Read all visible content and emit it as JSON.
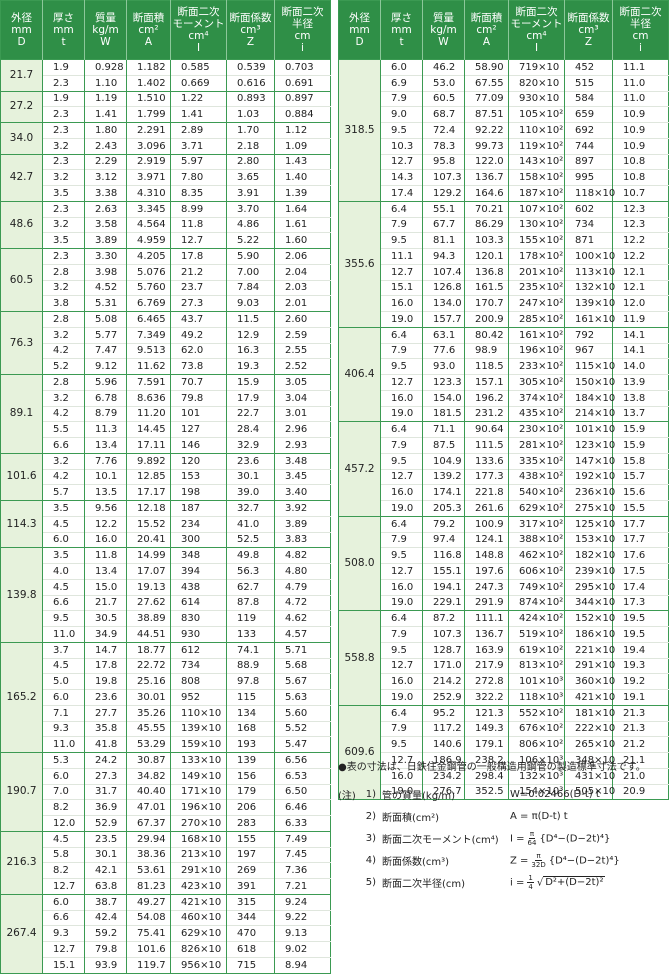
{
  "header": [
    [
      "外径",
      "mm",
      "D"
    ],
    [
      "厚さ",
      "mm",
      "t"
    ],
    [
      "質量",
      "kg/m",
      "W"
    ],
    [
      "断面積",
      "cm²",
      "A"
    ],
    [
      "断面二次",
      "モーメント",
      "cm⁴",
      "I"
    ],
    [
      "断面係数",
      "cm³",
      "Z"
    ],
    [
      "断面二次",
      "半径",
      "cm",
      "i"
    ]
  ],
  "left": {
    "groups": [
      {
        "D": "21.7",
        "rows": [
          [
            "1.9",
            "0.928",
            "1.182",
            "0.585",
            "0.539",
            "0.703"
          ],
          [
            "2.3",
            "1.10",
            "1.402",
            "0.669",
            "0.616",
            "0.691"
          ]
        ]
      },
      {
        "D": "27.2",
        "rows": [
          [
            "1.9",
            "1.19",
            "1.510",
            "1.22",
            "0.893",
            "0.897"
          ],
          [
            "2.3",
            "1.41",
            "1.799",
            "1.41",
            "1.03",
            "0.884"
          ]
        ]
      },
      {
        "D": "34.0",
        "rows": [
          [
            "2.3",
            "1.80",
            "2.291",
            "2.89",
            "1.70",
            "1.12"
          ],
          [
            "3.2",
            "2.43",
            "3.096",
            "3.71",
            "2.18",
            "1.09"
          ]
        ]
      },
      {
        "D": "42.7",
        "rows": [
          [
            "2.3",
            "2.29",
            "2.919",
            "5.97",
            "2.80",
            "1.43"
          ],
          [
            "3.2",
            "3.12",
            "3.971",
            "7.80",
            "3.65",
            "1.40"
          ],
          [
            "3.5",
            "3.38",
            "4.310",
            "8.35",
            "3.91",
            "1.39"
          ]
        ]
      },
      {
        "D": "48.6",
        "rows": [
          [
            "2.3",
            "2.63",
            "3.345",
            "8.99",
            "3.70",
            "1.64"
          ],
          [
            "3.2",
            "3.58",
            "4.564",
            "11.8",
            "4.86",
            "1.61"
          ],
          [
            "3.5",
            "3.89",
            "4.959",
            "12.7",
            "5.22",
            "1.60"
          ]
        ]
      },
      {
        "D": "60.5",
        "rows": [
          [
            "2.3",
            "3.30",
            "4.205",
            "17.8",
            "5.90",
            "2.06"
          ],
          [
            "2.8",
            "3.98",
            "5.076",
            "21.2",
            "7.00",
            "2.04"
          ],
          [
            "3.2",
            "4.52",
            "5.760",
            "23.7",
            "7.84",
            "2.03"
          ],
          [
            "3.8",
            "5.31",
            "6.769",
            "27.3",
            "9.03",
            "2.01"
          ]
        ]
      },
      {
        "D": "76.3",
        "rows": [
          [
            "2.8",
            "5.08",
            "6.465",
            "43.7",
            "11.5",
            "2.60"
          ],
          [
            "3.2",
            "5.77",
            "7.349",
            "49.2",
            "12.9",
            "2.59"
          ],
          [
            "4.2",
            "7.47",
            "9.513",
            "62.0",
            "16.3",
            "2.55"
          ],
          [
            "5.2",
            "9.12",
            "11.62",
            "73.8",
            "19.3",
            "2.52"
          ]
        ]
      },
      {
        "D": "89.1",
        "rows": [
          [
            "2.8",
            "5.96",
            "7.591",
            "70.7",
            "15.9",
            "3.05"
          ],
          [
            "3.2",
            "6.78",
            "8.636",
            "79.8",
            "17.9",
            "3.04"
          ],
          [
            "4.2",
            "8.79",
            "11.20",
            "101",
            "22.7",
            "3.01"
          ],
          [
            "5.5",
            "11.3",
            "14.45",
            "127",
            "28.4",
            "2.96"
          ],
          [
            "6.6",
            "13.4",
            "17.11",
            "146",
            "32.9",
            "2.93"
          ]
        ]
      },
      {
        "D": "101.6",
        "rows": [
          [
            "3.2",
            "7.76",
            "9.892",
            "120",
            "23.6",
            "3.48"
          ],
          [
            "4.2",
            "10.1",
            "12.85",
            "153",
            "30.1",
            "3.45"
          ],
          [
            "5.7",
            "13.5",
            "17.17",
            "198",
            "39.0",
            "3.40"
          ]
        ]
      },
      {
        "D": "114.3",
        "rows": [
          [
            "3.5",
            "9.56",
            "12.18",
            "187",
            "32.7",
            "3.92"
          ],
          [
            "4.5",
            "12.2",
            "15.52",
            "234",
            "41.0",
            "3.89"
          ],
          [
            "6.0",
            "16.0",
            "20.41",
            "300",
            "52.5",
            "3.83"
          ]
        ]
      },
      {
        "D": "139.8",
        "rows": [
          [
            "3.5",
            "11.8",
            "14.99",
            "348",
            "49.8",
            "4.82"
          ],
          [
            "4.0",
            "13.4",
            "17.07",
            "394",
            "56.3",
            "4.80"
          ],
          [
            "4.5",
            "15.0",
            "19.13",
            "438",
            "62.7",
            "4.79"
          ],
          [
            "6.6",
            "21.7",
            "27.62",
            "614",
            "87.8",
            "4.72"
          ],
          [
            "9.5",
            "30.5",
            "38.89",
            "830",
            "119",
            "4.62"
          ],
          [
            "11.0",
            "34.9",
            "44.51",
            "930",
            "133",
            "4.57"
          ]
        ]
      },
      {
        "D": "165.2",
        "rows": [
          [
            "3.7",
            "14.7",
            "18.77",
            "612",
            "74.1",
            "5.71"
          ],
          [
            "4.5",
            "17.8",
            "22.72",
            "734",
            "88.9",
            "5.68"
          ],
          [
            "5.0",
            "19.8",
            "25.16",
            "808",
            "97.8",
            "5.67"
          ],
          [
            "6.0",
            "23.6",
            "30.01",
            "952",
            "115",
            "5.63"
          ],
          [
            "7.1",
            "27.7",
            "35.26",
            "110×10",
            "134",
            "5.60"
          ],
          [
            "9.3",
            "35.8",
            "45.55",
            "139×10",
            "168",
            "5.52"
          ],
          [
            "11.0",
            "41.8",
            "53.29",
            "159×10",
            "193",
            "5.47"
          ]
        ]
      },
      {
        "D": "190.7",
        "rows": [
          [
            "5.3",
            "24.2",
            "30.87",
            "133×10",
            "139",
            "6.56"
          ],
          [
            "6.0",
            "27.3",
            "34.82",
            "149×10",
            "156",
            "6.53"
          ],
          [
            "7.0",
            "31.7",
            "40.40",
            "171×10",
            "179",
            "6.50"
          ],
          [
            "8.2",
            "36.9",
            "47.01",
            "196×10",
            "206",
            "6.46"
          ],
          [
            "12.0",
            "52.9",
            "67.37",
            "270×10",
            "283",
            "6.33"
          ]
        ]
      },
      {
        "D": "216.3",
        "rows": [
          [
            "4.5",
            "23.5",
            "29.94",
            "168×10",
            "155",
            "7.49"
          ],
          [
            "5.8",
            "30.1",
            "38.36",
            "213×10",
            "197",
            "7.45"
          ],
          [
            "8.2",
            "42.1",
            "53.61",
            "291×10",
            "269",
            "7.36"
          ],
          [
            "12.7",
            "63.8",
            "81.23",
            "423×10",
            "391",
            "7.21"
          ]
        ]
      },
      {
        "D": "267.4",
        "rows": [
          [
            "6.0",
            "38.7",
            "49.27",
            "421×10",
            "315",
            "9.24"
          ],
          [
            "6.6",
            "42.4",
            "54.08",
            "460×10",
            "344",
            "9.22"
          ],
          [
            "9.3",
            "59.2",
            "75.41",
            "629×10",
            "470",
            "9.13"
          ],
          [
            "12.7",
            "79.8",
            "101.6",
            "826×10",
            "618",
            "9.02"
          ],
          [
            "15.1",
            "93.9",
            "119.7",
            "956×10",
            "715",
            "8.94"
          ]
        ]
      }
    ]
  },
  "right": {
    "groups": [
      {
        "D": "318.5",
        "rows": [
          [
            "6.0",
            "46.2",
            "58.90",
            "719×10",
            "452",
            "11.1"
          ],
          [
            "6.9",
            "53.0",
            "67.55",
            "820×10",
            "515",
            "11.0"
          ],
          [
            "7.9",
            "60.5",
            "77.09",
            "930×10",
            "584",
            "11.0"
          ],
          [
            "9.0",
            "68.7",
            "87.51",
            "105×10²",
            "659",
            "10.9"
          ],
          [
            "9.5",
            "72.4",
            "92.22",
            "110×10²",
            "692",
            "10.9"
          ],
          [
            "10.3",
            "78.3",
            "99.73",
            "119×10²",
            "744",
            "10.9"
          ],
          [
            "12.7",
            "95.8",
            "122.0",
            "143×10²",
            "897",
            "10.8"
          ],
          [
            "14.3",
            "107.3",
            "136.7",
            "158×10²",
            "995",
            "10.8"
          ],
          [
            "17.4",
            "129.2",
            "164.6",
            "187×10²",
            "118×10",
            "10.7"
          ]
        ]
      },
      {
        "D": "355.6",
        "rows": [
          [
            "6.4",
            "55.1",
            "70.21",
            "107×10²",
            "602",
            "12.3"
          ],
          [
            "7.9",
            "67.7",
            "86.29",
            "130×10²",
            "734",
            "12.3"
          ],
          [
            "9.5",
            "81.1",
            "103.3",
            "155×10²",
            "871",
            "12.2"
          ],
          [
            "11.1",
            "94.3",
            "120.1",
            "178×10²",
            "100×10",
            "12.2"
          ],
          [
            "12.7",
            "107.4",
            "136.8",
            "201×10²",
            "113×10",
            "12.1"
          ],
          [
            "15.1",
            "126.8",
            "161.5",
            "235×10²",
            "132×10",
            "12.1"
          ],
          [
            "16.0",
            "134.0",
            "170.7",
            "247×10²",
            "139×10",
            "12.0"
          ],
          [
            "19.0",
            "157.7",
            "200.9",
            "285×10²",
            "161×10",
            "11.9"
          ]
        ]
      },
      {
        "D": "406.4",
        "rows": [
          [
            "6.4",
            "63.1",
            "80.42",
            "161×10²",
            "792",
            "14.1"
          ],
          [
            "7.9",
            "77.6",
            "98.9",
            "196×10²",
            "967",
            "14.1"
          ],
          [
            "9.5",
            "93.0",
            "118.5",
            "233×10²",
            "115×10",
            "14.0"
          ],
          [
            "12.7",
            "123.3",
            "157.1",
            "305×10²",
            "150×10",
            "13.9"
          ],
          [
            "16.0",
            "154.0",
            "196.2",
            "374×10²",
            "184×10",
            "13.8"
          ],
          [
            "19.0",
            "181.5",
            "231.2",
            "435×10²",
            "214×10",
            "13.7"
          ]
        ]
      },
      {
        "D": "457.2",
        "rows": [
          [
            "6.4",
            "71.1",
            "90.64",
            "230×10²",
            "101×10",
            "15.9"
          ],
          [
            "7.9",
            "87.5",
            "111.5",
            "281×10²",
            "123×10",
            "15.9"
          ],
          [
            "9.5",
            "104.9",
            "133.6",
            "335×10²",
            "147×10",
            "15.8"
          ],
          [
            "12.7",
            "139.2",
            "177.3",
            "438×10²",
            "192×10",
            "15.7"
          ],
          [
            "16.0",
            "174.1",
            "221.8",
            "540×10²",
            "236×10",
            "15.6"
          ],
          [
            "19.0",
            "205.3",
            "261.6",
            "629×10²",
            "275×10",
            "15.5"
          ]
        ]
      },
      {
        "D": "508.0",
        "rows": [
          [
            "6.4",
            "79.2",
            "100.9",
            "317×10²",
            "125×10",
            "17.7"
          ],
          [
            "7.9",
            "97.4",
            "124.1",
            "388×10²",
            "153×10",
            "17.7"
          ],
          [
            "9.5",
            "116.8",
            "148.8",
            "462×10²",
            "182×10",
            "17.6"
          ],
          [
            "12.7",
            "155.1",
            "197.6",
            "606×10²",
            "239×10",
            "17.5"
          ],
          [
            "16.0",
            "194.1",
            "247.3",
            "749×10²",
            "295×10",
            "17.4"
          ],
          [
            "19.0",
            "229.1",
            "291.9",
            "874×10²",
            "344×10",
            "17.3"
          ]
        ]
      },
      {
        "D": "558.8",
        "rows": [
          [
            "6.4",
            "87.2",
            "111.1",
            "424×10²",
            "152×10",
            "19.5"
          ],
          [
            "7.9",
            "107.3",
            "136.7",
            "519×10²",
            "186×10",
            "19.5"
          ],
          [
            "9.5",
            "128.7",
            "163.9",
            "619×10²",
            "221×10",
            "19.4"
          ],
          [
            "12.7",
            "171.0",
            "217.9",
            "813×10²",
            "291×10",
            "19.3"
          ],
          [
            "16.0",
            "214.2",
            "272.8",
            "101×10³",
            "360×10",
            "19.2"
          ],
          [
            "19.0",
            "252.9",
            "322.2",
            "118×10³",
            "421×10",
            "19.1"
          ]
        ]
      },
      {
        "D": "609.6",
        "rows": [
          [
            "6.4",
            "95.2",
            "121.3",
            "552×10²",
            "181×10",
            "21.3"
          ],
          [
            "7.9",
            "117.2",
            "149.3",
            "676×10²",
            "222×10",
            "21.3"
          ],
          [
            "9.5",
            "140.6",
            "179.1",
            "806×10²",
            "265×10",
            "21.2"
          ],
          [
            "12.7",
            "186.9",
            "238.2",
            "106×10³",
            "348×10",
            "21.1"
          ],
          [
            "16.0",
            "234.2",
            "298.4",
            "132×10³",
            "431×10",
            "21.0"
          ],
          [
            "19.0",
            "276.7",
            "352.5",
            "154×10³",
            "505×10",
            "20.9"
          ]
        ]
      }
    ]
  },
  "notes": {
    "bullet": "●表の寸法は、日鉄住金鋼管の一般構造用鋼管の製造標準寸法です。",
    "label": "(注)",
    "items": [
      {
        "num": "1)",
        "text": "管の質量(kg/m)",
        "formula": {
          "lhs": "W=0.02466(D-t) t"
        }
      },
      {
        "num": "2)",
        "text": "断面積(cm²)",
        "formula": {
          "lhs": "A = π(D-t) t"
        }
      },
      {
        "num": "3)",
        "text": "断面二次モーメント(cm⁴)",
        "formula": {
          "lhs": "I =",
          "num": "π",
          "den": "64",
          "rest": "{D⁴−(D−2t)⁴}"
        }
      },
      {
        "num": "4)",
        "text": "断面係数(cm³)",
        "formula": {
          "lhs": "Z =",
          "num": "π",
          "den": "32D",
          "rest": "{D⁴−(D−2t)⁴}"
        }
      },
      {
        "num": "5)",
        "text": "断面二次半径(cm)",
        "formula": {
          "lhs": "i =",
          "num": "1",
          "den": "4",
          "root": "D²+(D−2t)²"
        }
      }
    ]
  }
}
